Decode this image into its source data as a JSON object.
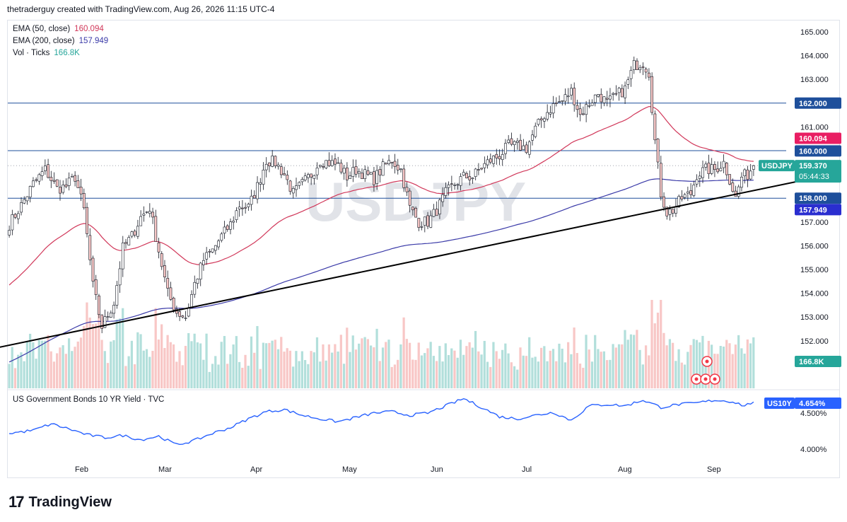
{
  "header": {
    "text": "thetraderguy created with TradingView.com, Aug 26, 2026 11:15 UTC-4"
  },
  "legend": [
    {
      "label": "EMA (50, close)",
      "value": "160.094",
      "color": "#d1385a"
    },
    {
      "label": "EMA (200, close)",
      "value": "157.949",
      "color": "#3a3aa8"
    },
    {
      "label": "Vol · Ticks",
      "value": "166.8K",
      "color": "#26a69a"
    }
  ],
  "watermark": "USDJPY",
  "symbol_tag": {
    "symbol": "USDJPY",
    "price": "159.370",
    "countdown": "05:44:33"
  },
  "price_labels": {
    "ema50": {
      "text": "160.094",
      "color": "#e91e63"
    },
    "ema200": {
      "text": "157.949",
      "color": "#2a2ed0"
    },
    "level162": {
      "text": "162.000",
      "color": "#1e4f9b"
    },
    "level160": {
      "text": "160.000",
      "color": "#1e4f9b"
    },
    "level158": {
      "text": "158.000",
      "color": "#1e4f9b"
    },
    "volume": {
      "text": "166.8K",
      "color": "#26a69a"
    }
  },
  "lower_pane": {
    "title": "US Government Bonds 10 YR Yield · TVC",
    "tag_symbol": "US10Y",
    "tag_value": "4.654%",
    "ticks": [
      "4.500%",
      "4.000%"
    ],
    "color": "#2962ff"
  },
  "brand": {
    "name": "TradingView"
  },
  "chart_data": {
    "type": "candlestick",
    "symbol": "USDJPY",
    "price_axis": {
      "ticks": [
        152,
        153,
        154,
        155,
        156,
        157,
        158,
        159,
        160,
        161,
        162,
        163,
        164,
        165
      ],
      "labels": [
        "152.000",
        "153.000",
        "154.000",
        "155.000",
        "156.000",
        "157.000",
        "158.000",
        "159.000",
        "160.000",
        "161.000",
        "162.000",
        "163.000",
        "164.000",
        "165.000"
      ]
    },
    "x_labels": [
      "Feb",
      "Mar",
      "Apr",
      "May",
      "Jun",
      "Jul",
      "Aug",
      "Sep"
    ],
    "horizontal_levels": [
      162.0,
      160.0,
      158.0
    ],
    "last_price": 159.37,
    "ema50_last": 160.094,
    "ema200_last": 157.949,
    "close_path": [
      {
        "x": 0,
        "y": 156.9
      },
      {
        "x": 4,
        "y": 157.7
      },
      {
        "x": 8,
        "y": 158.6
      },
      {
        "x": 12,
        "y": 159.2
      },
      {
        "x": 16,
        "y": 158.4
      },
      {
        "x": 19,
        "y": 158.5
      },
      {
        "x": 22,
        "y": 158.9
      },
      {
        "x": 25,
        "y": 157.5
      },
      {
        "x": 28,
        "y": 154.3
      },
      {
        "x": 31,
        "y": 152.6
      },
      {
        "x": 35,
        "y": 153.6
      },
      {
        "x": 38,
        "y": 155.9
      },
      {
        "x": 41,
        "y": 156.4
      },
      {
        "x": 44,
        "y": 157.2
      },
      {
        "x": 47,
        "y": 157.6
      },
      {
        "x": 50,
        "y": 155.8
      },
      {
        "x": 53,
        "y": 154.0
      },
      {
        "x": 56,
        "y": 153.2
      },
      {
        "x": 59,
        "y": 153.0
      },
      {
        "x": 62,
        "y": 154.4
      },
      {
        "x": 65,
        "y": 155.4
      },
      {
        "x": 68,
        "y": 155.8
      },
      {
        "x": 71,
        "y": 156.4
      },
      {
        "x": 74,
        "y": 156.9
      },
      {
        "x": 77,
        "y": 157.7
      },
      {
        "x": 80,
        "y": 157.6
      },
      {
        "x": 83,
        "y": 158.5
      },
      {
        "x": 86,
        "y": 159.6
      },
      {
        "x": 89,
        "y": 159.5
      },
      {
        "x": 92,
        "y": 159.0
      },
      {
        "x": 95,
        "y": 158.2
      },
      {
        "x": 98,
        "y": 158.6
      },
      {
        "x": 101,
        "y": 159.0
      },
      {
        "x": 104,
        "y": 159.6
      },
      {
        "x": 107,
        "y": 159.5
      },
      {
        "x": 110,
        "y": 159.4
      },
      {
        "x": 113,
        "y": 158.9
      },
      {
        "x": 116,
        "y": 159.2
      },
      {
        "x": 119,
        "y": 159.0
      },
      {
        "x": 122,
        "y": 158.8
      },
      {
        "x": 125,
        "y": 159.3
      },
      {
        "x": 128,
        "y": 159.6
      },
      {
        "x": 131,
        "y": 159.2
      },
      {
        "x": 134,
        "y": 157.6
      },
      {
        "x": 137,
        "y": 157.0
      },
      {
        "x": 140,
        "y": 157.0
      },
      {
        "x": 143,
        "y": 157.5
      },
      {
        "x": 146,
        "y": 158.2
      },
      {
        "x": 149,
        "y": 158.6
      },
      {
        "x": 152,
        "y": 158.9
      },
      {
        "x": 155,
        "y": 158.9
      },
      {
        "x": 158,
        "y": 159.3
      },
      {
        "x": 161,
        "y": 159.6
      },
      {
        "x": 164,
        "y": 159.8
      },
      {
        "x": 167,
        "y": 160.2
      },
      {
        "x": 170,
        "y": 160.2
      },
      {
        "x": 173,
        "y": 160.1
      },
      {
        "x": 176,
        "y": 160.9
      },
      {
        "x": 179,
        "y": 161.5
      },
      {
        "x": 182,
        "y": 161.9
      },
      {
        "x": 185,
        "y": 162.1
      },
      {
        "x": 188,
        "y": 162.5
      },
      {
        "x": 191,
        "y": 161.5
      },
      {
        "x": 194,
        "y": 162.0
      },
      {
        "x": 197,
        "y": 162.4
      },
      {
        "x": 200,
        "y": 162.0
      },
      {
        "x": 203,
        "y": 162.3
      },
      {
        "x": 206,
        "y": 162.6
      },
      {
        "x": 209,
        "y": 163.6
      },
      {
        "x": 212,
        "y": 163.7
      },
      {
        "x": 214,
        "y": 163.3
      },
      {
        "x": 216,
        "y": 160.4
      },
      {
        "x": 218,
        "y": 158.2
      },
      {
        "x": 220,
        "y": 157.4
      },
      {
        "x": 222,
        "y": 157.5
      },
      {
        "x": 225,
        "y": 158.0
      },
      {
        "x": 228,
        "y": 158.2
      },
      {
        "x": 230,
        "y": 159.0
      },
      {
        "x": 233,
        "y": 159.2
      },
      {
        "x": 236,
        "y": 159.2
      },
      {
        "x": 239,
        "y": 159.5
      },
      {
        "x": 241,
        "y": 158.8
      },
      {
        "x": 243,
        "y": 158.0
      },
      {
        "x": 245,
        "y": 158.9
      },
      {
        "x": 247,
        "y": 159.0
      },
      {
        "x": 249,
        "y": 159.37
      }
    ],
    "us10y_path": [
      {
        "x": 0,
        "y": 4.22
      },
      {
        "x": 8,
        "y": 4.26
      },
      {
        "x": 14,
        "y": 4.35
      },
      {
        "x": 20,
        "y": 4.28
      },
      {
        "x": 26,
        "y": 4.2
      },
      {
        "x": 32,
        "y": 4.16
      },
      {
        "x": 38,
        "y": 4.19
      },
      {
        "x": 44,
        "y": 4.13
      },
      {
        "x": 50,
        "y": 4.18
      },
      {
        "x": 56,
        "y": 4.06
      },
      {
        "x": 62,
        "y": 4.12
      },
      {
        "x": 68,
        "y": 4.22
      },
      {
        "x": 74,
        "y": 4.3
      },
      {
        "x": 80,
        "y": 4.42
      },
      {
        "x": 86,
        "y": 4.52
      },
      {
        "x": 92,
        "y": 4.55
      },
      {
        "x": 98,
        "y": 4.47
      },
      {
        "x": 104,
        "y": 4.42
      },
      {
        "x": 110,
        "y": 4.38
      },
      {
        "x": 116,
        "y": 4.44
      },
      {
        "x": 122,
        "y": 4.5
      },
      {
        "x": 128,
        "y": 4.52
      },
      {
        "x": 134,
        "y": 4.47
      },
      {
        "x": 140,
        "y": 4.5
      },
      {
        "x": 146,
        "y": 4.6
      },
      {
        "x": 152,
        "y": 4.7
      },
      {
        "x": 158,
        "y": 4.58
      },
      {
        "x": 164,
        "y": 4.45
      },
      {
        "x": 170,
        "y": 4.42
      },
      {
        "x": 176,
        "y": 4.47
      },
      {
        "x": 182,
        "y": 4.51
      },
      {
        "x": 188,
        "y": 4.4
      },
      {
        "x": 194,
        "y": 4.6
      },
      {
        "x": 200,
        "y": 4.62
      },
      {
        "x": 206,
        "y": 4.6
      },
      {
        "x": 212,
        "y": 4.68
      },
      {
        "x": 218,
        "y": 4.58
      },
      {
        "x": 224,
        "y": 4.62
      },
      {
        "x": 230,
        "y": 4.64
      },
      {
        "x": 236,
        "y": 4.68
      },
      {
        "x": 242,
        "y": 4.66
      },
      {
        "x": 246,
        "y": 4.6
      },
      {
        "x": 249,
        "y": 4.654
      }
    ],
    "trendline": {
      "from": {
        "x": -12,
        "y": 151.5
      },
      "to": {
        "x": 275,
        "y": 159.0
      }
    },
    "bar_count": 250
  }
}
